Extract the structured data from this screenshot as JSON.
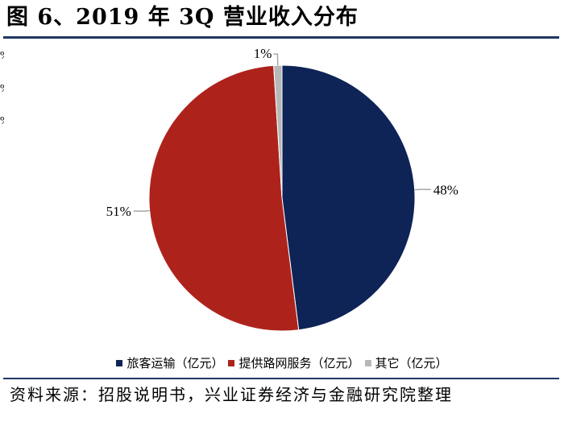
{
  "title": "图 6、2019 年 3Q 营业收入分布",
  "left_edge_fragments": [
    "%",
    "%",
    "%"
  ],
  "chart_data": {
    "type": "pie",
    "title": "",
    "slices": [
      {
        "name": "旅客运输（亿元）",
        "value": 48,
        "label": "48%",
        "color": "#0e2356"
      },
      {
        "name": "提供路网服务（亿元）",
        "value": 51,
        "label": "51%",
        "color": "#ad231c"
      },
      {
        "name": "其它（亿元）",
        "value": 1,
        "label": "1%",
        "color": "#b8b8b8"
      }
    ],
    "start": "12 o'clock",
    "direction": "clockwise",
    "legend_position": "bottom"
  },
  "source": "资料来源：招股说明书，兴业证券经济与金融研究院整理"
}
